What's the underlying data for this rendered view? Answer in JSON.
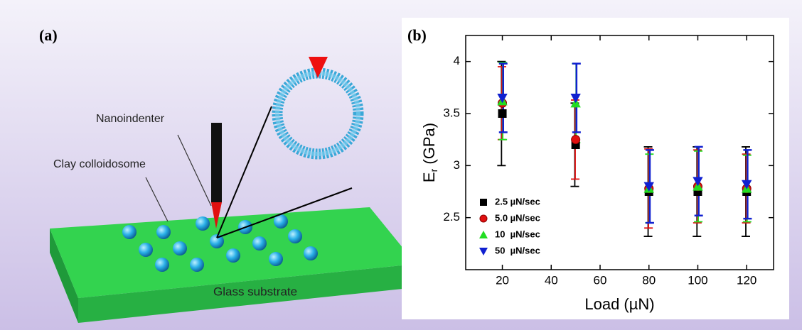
{
  "panel_a": {
    "label": "(a)",
    "nanoindenter": "Nanoindenter",
    "colloidosome": "Clay colloidosome",
    "substrate": "Glass substrate"
  },
  "chart_data": {
    "type": "errorbar",
    "panel_label": "(b)",
    "xlabel": "Load (µN)",
    "ylabel": {
      "main": "E",
      "sub": "r",
      "unit": "(GPa)"
    },
    "x": [
      20,
      50,
      80,
      100,
      120
    ],
    "xlim": [
      5,
      131
    ],
    "xticks": [
      20,
      40,
      60,
      80,
      100,
      120
    ],
    "ylim": [
      2,
      4.25
    ],
    "yticks": [
      2.5,
      3,
      3.5,
      4
    ],
    "legend": "lower left",
    "series": [
      {
        "name": "2.5 µN/sec",
        "color": "#000000",
        "marker": "square",
        "values": [
          3.5,
          3.2,
          2.75,
          2.75,
          2.75
        ],
        "errors": [
          0.5,
          0.4,
          0.43,
          0.43,
          0.43
        ]
      },
      {
        "name": "5.0 µN/sec",
        "color": "#e01010",
        "marker": "circle",
        "values": [
          3.6,
          3.25,
          2.78,
          2.8,
          2.78
        ],
        "errors": [
          0.35,
          0.38,
          0.38,
          0.35,
          0.33
        ]
      },
      {
        "name": "10  µN/sec",
        "color": "#22dd22",
        "marker": "triangle",
        "values": [
          3.62,
          3.6,
          2.78,
          2.8,
          2.78
        ],
        "errors": [
          0.37,
          0.38,
          0.33,
          0.34,
          0.32
        ]
      },
      {
        "name": "50  µN/sec",
        "color": "#1020d0",
        "marker": "triangle-down",
        "values": [
          3.65,
          3.65,
          2.8,
          2.85,
          2.82
        ],
        "errors": [
          0.33,
          0.33,
          0.35,
          0.33,
          0.33
        ]
      }
    ]
  }
}
